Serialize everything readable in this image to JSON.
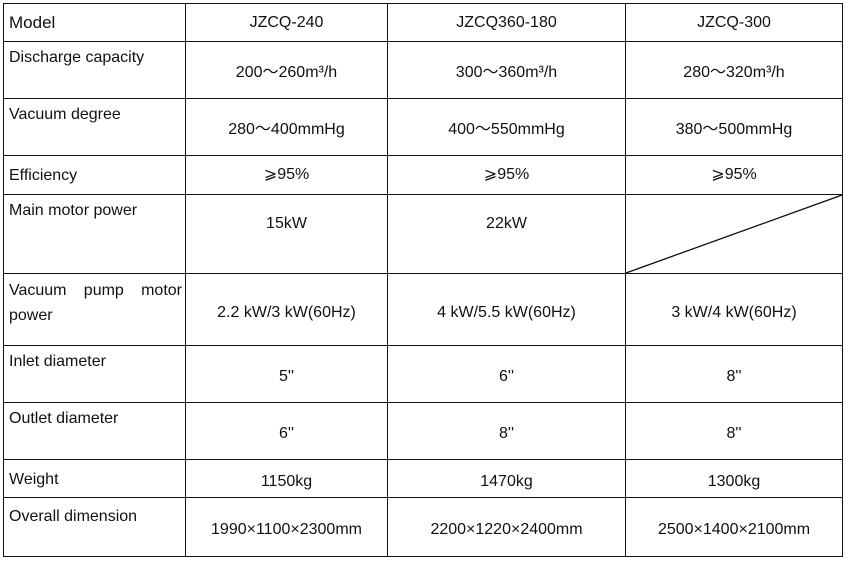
{
  "header": {
    "label": "Model",
    "models": [
      "JZCQ-240",
      "JZCQ360-180",
      "JZCQ-300"
    ]
  },
  "rows": [
    {
      "label": "Discharge capacity",
      "values": [
        "200〜260m³/h",
        "300〜360m³/h",
        "280〜320m³/h"
      ]
    },
    {
      "label": "Vacuum degree",
      "values": [
        "280〜400mmHg",
        "400〜550mmHg",
        "380〜500mmHg"
      ]
    },
    {
      "label": "Efficiency",
      "values": [
        "⩾95%",
        "⩾95%",
        "⩾95%"
      ]
    },
    {
      "label": "Main motor power",
      "values": [
        "15kW",
        "22kW",
        ""
      ]
    },
    {
      "label_line1": "Vacuum pump motor",
      "label_line2": "power",
      "values": [
        "2.2 kW/3 kW(60Hz)",
        "4 kW/5.5 kW(60Hz)",
        "3 kW/4 kW(60Hz)"
      ]
    },
    {
      "label": "Inlet diameter",
      "values": [
        "5''",
        "6''",
        "8''"
      ]
    },
    {
      "label": "Outlet diameter",
      "values": [
        "6''",
        "8''",
        "8''"
      ]
    },
    {
      "label": "Weight",
      "values": [
        "1150kg",
        "1470kg",
        "1300kg"
      ]
    },
    {
      "label": "Overall dimension",
      "values": [
        "1990×1100×2300mm",
        "2200×1220×2400mm",
        "2500×1400×2100mm"
      ]
    }
  ]
}
